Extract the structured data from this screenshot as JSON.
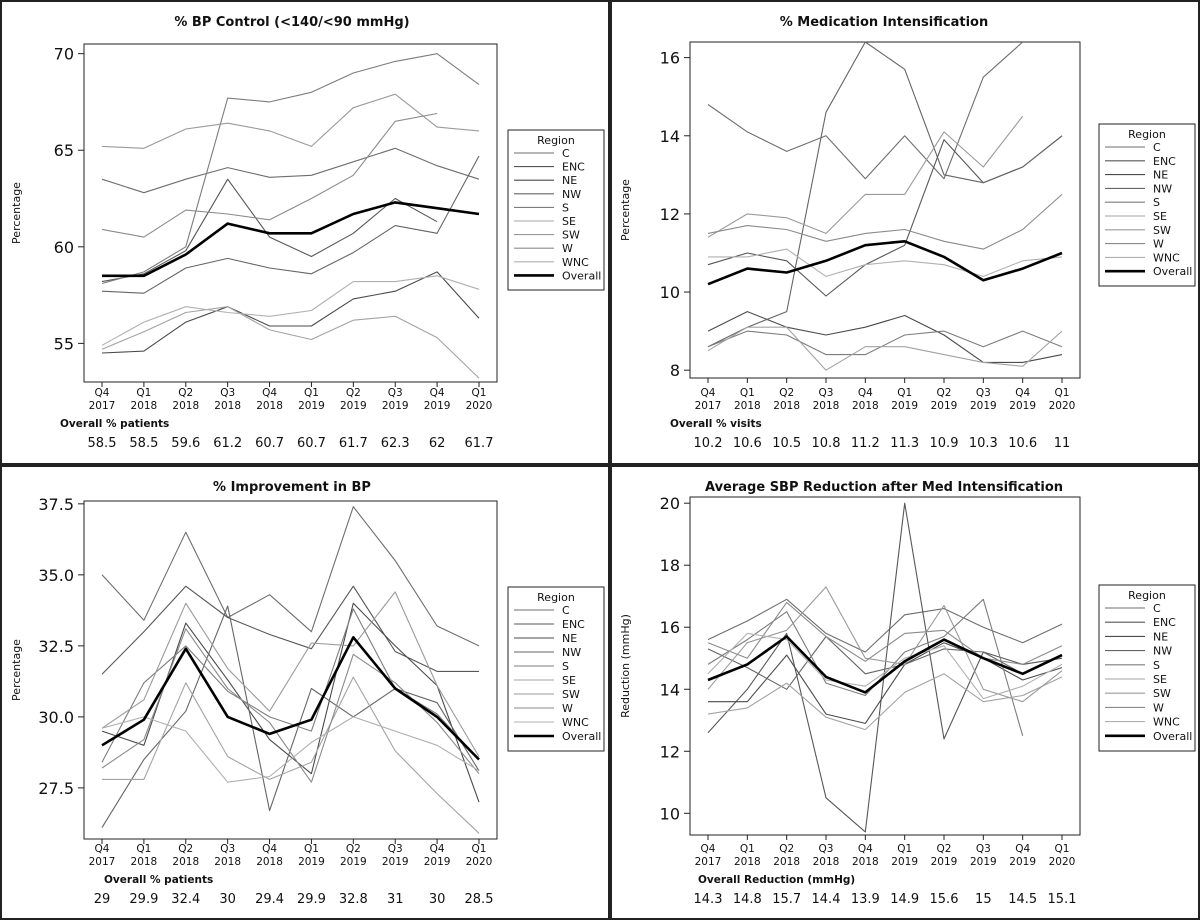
{
  "chart_data": [
    {
      "type": "line",
      "title": "% BP Control (<140/<90 mmHg)",
      "ylabel": "Percentage",
      "xlabel": "",
      "ylim": [
        53,
        70.5
      ],
      "yticks": [
        "55",
        "60",
        "65",
        "70"
      ],
      "categories": [
        [
          "Q4",
          "2017"
        ],
        [
          "Q1",
          "2018"
        ],
        [
          "Q2",
          "2018"
        ],
        [
          "Q3",
          "2018"
        ],
        [
          "Q4",
          "2018"
        ],
        [
          "Q1",
          "2019"
        ],
        [
          "Q2",
          "2019"
        ],
        [
          "Q3",
          "2019"
        ],
        [
          "Q4",
          "2019"
        ],
        [
          "Q1",
          "2020"
        ]
      ],
      "legend_title": "Region",
      "series": [
        {
          "name": "C",
          "values": [
            63.5,
            62.8,
            63.5,
            64.1,
            63.6,
            63.7,
            64.4,
            65.1,
            64.2,
            63.5
          ]
        },
        {
          "name": "ENC",
          "values": [
            58.2,
            58.6,
            59.8,
            63.5,
            60.5,
            59.5,
            60.7,
            62.5,
            61.3,
            null
          ]
        },
        {
          "name": "NE",
          "values": [
            54.5,
            54.6,
            56.1,
            56.9,
            55.9,
            55.9,
            57.3,
            57.7,
            58.7,
            56.3
          ]
        },
        {
          "name": "NW",
          "values": [
            57.7,
            57.6,
            58.9,
            59.4,
            58.9,
            58.6,
            59.7,
            61.1,
            60.7,
            64.7
          ]
        },
        {
          "name": "S",
          "values": [
            58.1,
            58.7,
            60.0,
            67.7,
            67.5,
            68.0,
            69.0,
            69.6,
            70.0,
            68.4
          ]
        },
        {
          "name": "SE",
          "values": [
            54.7,
            55.6,
            56.6,
            56.9,
            55.7,
            55.2,
            56.2,
            56.4,
            55.3,
            53.2
          ]
        },
        {
          "name": "SW",
          "values": [
            65.2,
            65.1,
            66.1,
            66.4,
            66.0,
            65.2,
            67.2,
            67.9,
            66.2,
            66.0
          ]
        },
        {
          "name": "W",
          "values": [
            60.9,
            60.5,
            61.9,
            61.7,
            61.4,
            62.5,
            63.7,
            66.5,
            66.9,
            null
          ]
        },
        {
          "name": "WNC",
          "values": [
            54.9,
            56.1,
            56.9,
            56.6,
            56.4,
            56.7,
            58.2,
            58.2,
            58.5,
            57.8
          ]
        },
        {
          "name": "Overall",
          "values": [
            58.5,
            58.5,
            59.6,
            61.2,
            60.7,
            60.7,
            61.7,
            62.3,
            62.0,
            61.7
          ]
        }
      ],
      "summary_label": "Overall % patients",
      "summary_values": [
        "58.5",
        "58.5",
        "59.6",
        "61.2",
        "60.7",
        "60.7",
        "61.7",
        "62.3",
        "62",
        "61.7"
      ]
    },
    {
      "type": "line",
      "title": "% Medication Intensification",
      "ylabel": "Percentage",
      "xlabel": "",
      "ylim": [
        7.8,
        16.4
      ],
      "yticks": [
        "8",
        "10",
        "12",
        "14",
        "16"
      ],
      "categories": [
        [
          "Q4",
          "2017"
        ],
        [
          "Q1",
          "2018"
        ],
        [
          "Q2",
          "2018"
        ],
        [
          "Q3",
          "2018"
        ],
        [
          "Q4",
          "2018"
        ],
        [
          "Q1",
          "2019"
        ],
        [
          "Q2",
          "2019"
        ],
        [
          "Q3",
          "2019"
        ],
        [
          "Q4",
          "2019"
        ],
        [
          "Q1",
          "2020"
        ]
      ],
      "legend_title": "Region",
      "series": [
        {
          "name": "C",
          "values": [
            14.8,
            14.1,
            13.6,
            14.0,
            12.9,
            14.0,
            12.9,
            15.5,
            16.4,
            null
          ]
        },
        {
          "name": "ENC",
          "values": [
            10.7,
            11.0,
            10.8,
            9.9,
            10.7,
            11.2,
            13.9,
            12.8,
            13.2,
            14.0
          ]
        },
        {
          "name": "NE",
          "values": [
            9.0,
            9.5,
            9.1,
            8.9,
            9.1,
            9.4,
            8.9,
            8.2,
            8.2,
            8.4
          ]
        },
        {
          "name": "NW",
          "values": [
            8.6,
            9.1,
            9.5,
            14.6,
            16.4,
            15.7,
            13.0,
            12.8,
            13.2,
            14.0
          ]
        },
        {
          "name": "S",
          "values": [
            8.6,
            9.0,
            8.9,
            8.4,
            8.4,
            8.9,
            9.0,
            8.6,
            9.0,
            8.6
          ]
        },
        {
          "name": "SE",
          "values": [
            8.5,
            9.1,
            9.1,
            8.0,
            8.6,
            8.6,
            8.4,
            8.2,
            8.1,
            9.0
          ]
        },
        {
          "name": "SW",
          "values": [
            11.4,
            12.0,
            11.9,
            11.5,
            12.5,
            12.5,
            14.1,
            13.2,
            14.5,
            null
          ]
        },
        {
          "name": "W",
          "values": [
            11.5,
            11.7,
            11.6,
            11.3,
            11.5,
            11.6,
            11.3,
            11.1,
            11.6,
            12.5
          ]
        },
        {
          "name": "WNC",
          "values": [
            10.9,
            10.9,
            11.1,
            10.4,
            10.7,
            10.8,
            10.7,
            10.4,
            10.8,
            10.9
          ]
        },
        {
          "name": "Overall",
          "values": [
            10.2,
            10.6,
            10.5,
            10.8,
            11.2,
            11.3,
            10.9,
            10.3,
            10.6,
            11.0
          ]
        }
      ],
      "summary_label": "Overall % visits",
      "summary_values": [
        "10.2",
        "10.6",
        "10.5",
        "10.8",
        "11.2",
        "11.3",
        "10.9",
        "10.3",
        "10.6",
        "11"
      ]
    },
    {
      "type": "line",
      "title": "% Improvement in BP",
      "ylabel": "Percentage",
      "xlabel": "",
      "ylim": [
        25.7,
        37.6
      ],
      "yticks": [
        "27.5",
        "30.0",
        "32.5",
        "35.0",
        "37.5"
      ],
      "categories": [
        [
          "Q4",
          "2017"
        ],
        [
          "Q1",
          "2018"
        ],
        [
          "Q2",
          "2018"
        ],
        [
          "Q3",
          "2018"
        ],
        [
          "Q4",
          "2018"
        ],
        [
          "Q1",
          "2019"
        ],
        [
          "Q2",
          "2019"
        ],
        [
          "Q3",
          "2019"
        ],
        [
          "Q4",
          "2019"
        ],
        [
          "Q1",
          "2020"
        ]
      ],
      "legend_title": "Region",
      "series": [
        {
          "name": "C",
          "values": [
            35.0,
            33.4,
            36.5,
            33.5,
            34.3,
            33.0,
            37.4,
            35.5,
            33.2,
            32.5
          ]
        },
        {
          "name": "ENC",
          "values": [
            31.5,
            33.0,
            34.6,
            33.5,
            32.9,
            32.4,
            34.6,
            32.3,
            31.6,
            31.6
          ]
        },
        {
          "name": "NE",
          "values": [
            29.5,
            29.0,
            33.3,
            31.3,
            29.2,
            28.0,
            34.0,
            32.5,
            31.1,
            27.0
          ]
        },
        {
          "name": "NW",
          "values": [
            26.1,
            28.5,
            30.2,
            33.9,
            26.7,
            31.0,
            30.0,
            31.0,
            30.5,
            28.1
          ]
        },
        {
          "name": "S",
          "values": [
            28.4,
            31.2,
            32.5,
            30.9,
            30.0,
            29.5,
            33.8,
            31.0,
            30.1,
            28.5
          ]
        },
        {
          "name": "SE",
          "values": [
            27.8,
            27.8,
            31.2,
            28.6,
            27.8,
            28.4,
            31.4,
            28.8,
            27.3,
            25.9
          ]
        },
        {
          "name": "SW",
          "values": [
            29.6,
            30.6,
            34.0,
            31.7,
            30.2,
            32.6,
            32.5,
            34.4,
            31.1,
            28.6
          ]
        },
        {
          "name": "W",
          "values": [
            28.2,
            29.2,
            33.1,
            31.0,
            29.8,
            27.7,
            32.2,
            31.2,
            29.8,
            28.0
          ]
        },
        {
          "name": "WNC",
          "values": [
            29.6,
            30.0,
            29.5,
            27.7,
            27.9,
            29.1,
            30.0,
            29.5,
            29.0,
            28.1
          ]
        },
        {
          "name": "Overall",
          "values": [
            29.0,
            29.9,
            32.4,
            30.0,
            29.4,
            29.9,
            32.8,
            31.0,
            30.0,
            28.5
          ]
        }
      ],
      "summary_label": "Overall % patients",
      "summary_values": [
        "29",
        "29.9",
        "32.4",
        "30",
        "29.4",
        "29.9",
        "32.8",
        "31",
        "30",
        "28.5"
      ]
    },
    {
      "type": "line",
      "title": "Average SBP Reduction after Med Intensification",
      "ylabel": "Reduction (mmHg)",
      "xlabel": "",
      "ylim": [
        9.3,
        20.2
      ],
      "yticks": [
        "10",
        "12",
        "14",
        "16",
        "18",
        "20"
      ],
      "categories": [
        [
          "Q4",
          "2017"
        ],
        [
          "Q1",
          "2018"
        ],
        [
          "Q2",
          "2018"
        ],
        [
          "Q3",
          "2018"
        ],
        [
          "Q4",
          "2018"
        ],
        [
          "Q1",
          "2019"
        ],
        [
          "Q2",
          "2019"
        ],
        [
          "Q3",
          "2019"
        ],
        [
          "Q4",
          "2019"
        ],
        [
          "Q1",
          "2020"
        ]
      ],
      "legend_title": "Region",
      "series": [
        {
          "name": "C",
          "values": [
            15.6,
            16.2,
            16.9,
            15.8,
            15.2,
            16.4,
            16.6,
            16.0,
            15.5,
            16.1
          ]
        },
        {
          "name": "ENC",
          "values": [
            12.6,
            14.0,
            15.8,
            10.5,
            9.4,
            20.0,
            12.4,
            15.2,
            14.8,
            15.0
          ]
        },
        {
          "name": "NE",
          "values": [
            13.6,
            13.6,
            15.1,
            13.2,
            12.9,
            14.8,
            15.5,
            15.0,
            14.3,
            14.7
          ]
        },
        {
          "name": "NW",
          "values": [
            15.3,
            14.7,
            14.0,
            15.7,
            14.5,
            14.8,
            15.3,
            15.2,
            14.5,
            15.1
          ]
        },
        {
          "name": "S",
          "values": [
            14.8,
            15.6,
            16.5,
            14.2,
            13.8,
            15.2,
            15.7,
            16.9,
            12.5,
            null
          ]
        },
        {
          "name": "SE",
          "values": [
            13.2,
            13.4,
            14.2,
            13.1,
            12.7,
            13.9,
            14.5,
            13.6,
            13.8,
            14.4
          ]
        },
        {
          "name": "SW",
          "values": [
            14.0,
            15.5,
            15.9,
            17.3,
            15.0,
            14.8,
            16.7,
            14.0,
            13.6,
            14.6
          ]
        },
        {
          "name": "W",
          "values": [
            15.5,
            15.0,
            16.8,
            15.7,
            14.9,
            15.8,
            15.9,
            15.0,
            14.8,
            15.4
          ]
        },
        {
          "name": "WNC",
          "values": [
            14.5,
            15.8,
            15.6,
            14.3,
            14.1,
            15.0,
            15.4,
            13.7,
            14.1,
            14.8
          ]
        },
        {
          "name": "Overall",
          "values": [
            14.3,
            14.8,
            15.7,
            14.4,
            13.9,
            14.9,
            15.6,
            15.0,
            14.5,
            15.1
          ]
        }
      ],
      "summary_label": "Overall Reduction (mmHg)",
      "summary_values": [
        "14.3",
        "14.8",
        "15.7",
        "14.4",
        "13.9",
        "14.9",
        "15.6",
        "15",
        "14.5",
        "15.1"
      ]
    }
  ],
  "series_colors": {
    "C": "#6e6e6e",
    "ENC": "#575757",
    "NE": "#4a4a4a",
    "NW": "#656565",
    "S": "#7d7d7d",
    "SE": "#a3a3a3",
    "SW": "#9a9a9a",
    "W": "#8b8b8b",
    "WNC": "#b0b0b0",
    "Overall": "#000000"
  }
}
